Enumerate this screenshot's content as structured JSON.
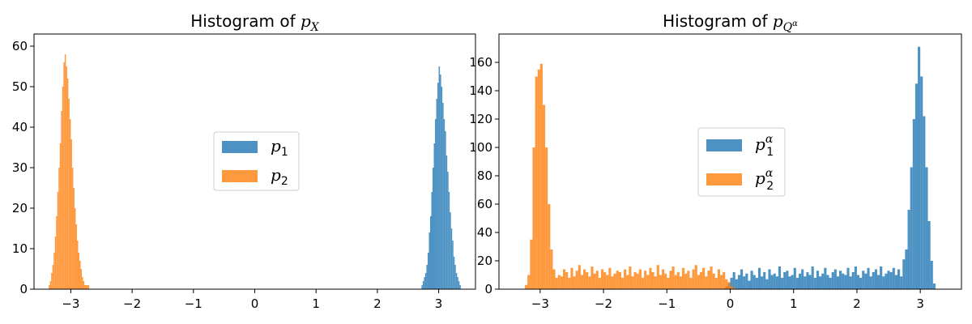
{
  "chart_data": [
    {
      "type": "histogram",
      "title_prefix": "Histogram of ",
      "title_math_base": "p",
      "title_math_sub": "X",
      "title_math_subsup": "",
      "xlim": [
        -3.6,
        3.6
      ],
      "ylim": [
        0,
        63
      ],
      "xticks": [
        -3,
        -2,
        -1,
        0,
        1,
        2,
        3
      ],
      "xtick_labels": [
        "−3",
        "−2",
        "−1",
        "0",
        "1",
        "2",
        "3"
      ],
      "yticks": [
        0,
        10,
        20,
        30,
        40,
        50,
        60
      ],
      "ytick_labels": [
        "0",
        "10",
        "20",
        "30",
        "40",
        "50",
        "60"
      ],
      "legend_placement": "center",
      "series": [
        {
          "legend_base": "p",
          "legend_sub": "1",
          "legend_sup": "",
          "color": "#1f77b4",
          "bin_width": 0.02,
          "bin_starts": [
            2.72,
            2.74,
            2.76,
            2.78,
            2.8,
            2.82,
            2.84,
            2.86,
            2.88,
            2.9,
            2.92,
            2.94,
            2.96,
            2.98,
            3.0,
            3.02,
            3.04,
            3.06,
            3.08,
            3.1,
            3.12,
            3.14,
            3.16,
            3.18,
            3.2,
            3.22,
            3.24,
            3.26,
            3.28,
            3.3,
            3.32,
            3.34
          ],
          "counts": [
            1,
            2,
            3,
            4,
            6,
            9,
            14,
            18,
            24,
            30,
            36,
            42,
            47,
            51,
            55,
            53,
            50,
            46,
            42,
            39,
            33,
            29,
            24,
            19,
            15,
            12,
            8,
            6,
            4,
            3,
            2,
            1
          ]
        },
        {
          "legend_base": "p",
          "legend_sub": "2",
          "legend_sup": "",
          "color": "#ff7f0e",
          "bin_width": 0.02,
          "bin_starts": [
            -3.36,
            -3.34,
            -3.32,
            -3.3,
            -3.28,
            -3.26,
            -3.24,
            -3.22,
            -3.2,
            -3.18,
            -3.16,
            -3.14,
            -3.12,
            -3.1,
            -3.08,
            -3.06,
            -3.04,
            -3.02,
            -3.0,
            -2.98,
            -2.96,
            -2.94,
            -2.92,
            -2.9,
            -2.88,
            -2.86,
            -2.84,
            -2.82,
            -2.8,
            -2.78,
            -2.76,
            -2.74,
            -2.72
          ],
          "counts": [
            1,
            2,
            4,
            6,
            9,
            13,
            18,
            24,
            30,
            36,
            44,
            50,
            56,
            58,
            55,
            52,
            47,
            42,
            37,
            30,
            25,
            20,
            16,
            12,
            9,
            7,
            5,
            3,
            2,
            1,
            1,
            1,
            1
          ]
        }
      ]
    },
    {
      "type": "histogram",
      "title_prefix": "Histogram of ",
      "title_math_base": "p",
      "title_math_sub": "Q",
      "title_math_subsup": "α",
      "xlim": [
        -3.65,
        3.65
      ],
      "ylim": [
        0,
        180
      ],
      "xticks": [
        -3,
        -2,
        -1,
        0,
        1,
        2,
        3
      ],
      "xtick_labels": [
        "−3",
        "−2",
        "−1",
        "0",
        "1",
        "2",
        "3"
      ],
      "yticks": [
        0,
        20,
        40,
        60,
        80,
        100,
        120,
        140,
        160
      ],
      "ytick_labels": [
        "0",
        "20",
        "40",
        "60",
        "80",
        "100",
        "120",
        "140",
        "160"
      ],
      "legend_placement": "center",
      "series": [
        {
          "legend_base": "p",
          "legend_sub": "1",
          "legend_sup": "α",
          "color": "#1f77b4",
          "bin_width": 0.04,
          "bin_starts": [
            -0.08,
            -0.04,
            0.0,
            0.04,
            0.08,
            0.12,
            0.16,
            0.2,
            0.24,
            0.28,
            0.32,
            0.36,
            0.4,
            0.44,
            0.48,
            0.52,
            0.56,
            0.6,
            0.64,
            0.68,
            0.72,
            0.76,
            0.8,
            0.84,
            0.88,
            0.92,
            0.96,
            1.0,
            1.04,
            1.08,
            1.12,
            1.16,
            1.2,
            1.24,
            1.28,
            1.32,
            1.36,
            1.4,
            1.44,
            1.48,
            1.52,
            1.56,
            1.6,
            1.64,
            1.68,
            1.72,
            1.76,
            1.8,
            1.84,
            1.88,
            1.92,
            1.96,
            2.0,
            2.04,
            2.08,
            2.12,
            2.16,
            2.2,
            2.24,
            2.28,
            2.32,
            2.36,
            2.4,
            2.44,
            2.48,
            2.52,
            2.56,
            2.6,
            2.64,
            2.68,
            2.72,
            2.76,
            2.8,
            2.84,
            2.88,
            2.92,
            2.96,
            3.0,
            3.04,
            3.08,
            3.12,
            3.16,
            3.2
          ],
          "counts": [
            2,
            4,
            8,
            12,
            7,
            10,
            14,
            9,
            11,
            6,
            13,
            10,
            8,
            15,
            9,
            12,
            7,
            14,
            10,
            11,
            9,
            16,
            8,
            12,
            13,
            9,
            10,
            15,
            8,
            11,
            14,
            9,
            12,
            10,
            16,
            8,
            13,
            9,
            11,
            15,
            10,
            8,
            12,
            14,
            9,
            13,
            11,
            10,
            15,
            9,
            12,
            16,
            10,
            8,
            13,
            11,
            15,
            9,
            12,
            14,
            10,
            16,
            9,
            11,
            13,
            12,
            15,
            10,
            14,
            9,
            21,
            28,
            56,
            86,
            120,
            145,
            171,
            150,
            122,
            86,
            48,
            20,
            4
          ]
        },
        {
          "legend_base": "p",
          "legend_sub": "2",
          "legend_sup": "α",
          "color": "#ff7f0e",
          "bin_width": 0.04,
          "bin_starts": [
            -3.24,
            -3.2,
            -3.16,
            -3.12,
            -3.08,
            -3.04,
            -3.0,
            -2.96,
            -2.92,
            -2.88,
            -2.84,
            -2.8,
            -2.76,
            -2.72,
            -2.68,
            -2.64,
            -2.6,
            -2.56,
            -2.52,
            -2.48,
            -2.44,
            -2.4,
            -2.36,
            -2.32,
            -2.28,
            -2.24,
            -2.2,
            -2.16,
            -2.12,
            -2.08,
            -2.04,
            -2.0,
            -1.96,
            -1.92,
            -1.88,
            -1.84,
            -1.8,
            -1.76,
            -1.72,
            -1.68,
            -1.64,
            -1.6,
            -1.56,
            -1.52,
            -1.48,
            -1.44,
            -1.4,
            -1.36,
            -1.32,
            -1.28,
            -1.24,
            -1.2,
            -1.16,
            -1.12,
            -1.08,
            -1.04,
            -1.0,
            -0.96,
            -0.92,
            -0.88,
            -0.84,
            -0.8,
            -0.76,
            -0.72,
            -0.68,
            -0.64,
            -0.6,
            -0.56,
            -0.52,
            -0.48,
            -0.44,
            -0.4,
            -0.36,
            -0.32,
            -0.28,
            -0.24,
            -0.2,
            -0.16,
            -0.12,
            -0.08,
            -0.04,
            0.0,
            0.04
          ],
          "counts": [
            3,
            10,
            35,
            100,
            150,
            155,
            159,
            130,
            100,
            60,
            28,
            14,
            8,
            10,
            9,
            14,
            12,
            8,
            15,
            9,
            13,
            17,
            10,
            14,
            12,
            9,
            16,
            11,
            13,
            8,
            14,
            12,
            10,
            15,
            9,
            11,
            13,
            12,
            8,
            14,
            10,
            16,
            9,
            12,
            11,
            14,
            8,
            13,
            10,
            15,
            12,
            9,
            17,
            10,
            14,
            11,
            8,
            13,
            16,
            10,
            12,
            9,
            15,
            11,
            13,
            8,
            14,
            17,
            10,
            12,
            15,
            9,
            13,
            16,
            11,
            8,
            14,
            10,
            12,
            7,
            5,
            2,
            1
          ]
        }
      ]
    }
  ]
}
